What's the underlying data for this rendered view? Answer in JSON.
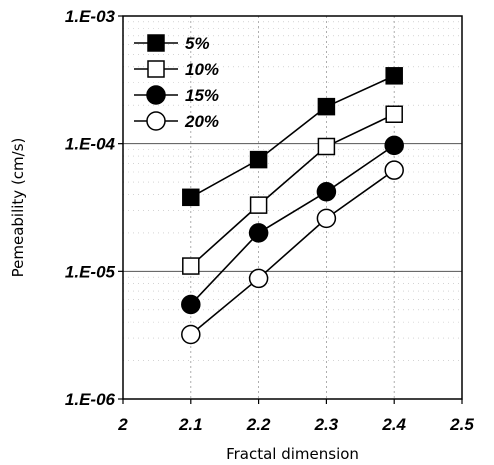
{
  "chart_data": {
    "type": "line",
    "title": "",
    "xlabel": "Fractal dimension",
    "ylabel": "Pemeability (cm/s)",
    "xlim": [
      2,
      2.5
    ],
    "ylim": [
      1e-06,
      0.001
    ],
    "yscale": "log",
    "x_ticks": [
      2,
      2.1,
      2.2,
      2.3,
      2.4,
      2.5
    ],
    "x_tick_labels": [
      "2",
      "2.1",
      "2.2",
      "2.3",
      "2.4",
      "2.5"
    ],
    "y_ticks": [
      1e-06,
      1e-05,
      0.0001,
      0.001
    ],
    "y_tick_labels": [
      "1.E-06",
      "1.E-05",
      "1.E-04",
      "1.E-03"
    ],
    "grid": true,
    "legend_position": "top-left",
    "x": [
      2.1,
      2.2,
      2.3,
      2.4
    ],
    "series": [
      {
        "name": "5%",
        "marker": "filled-square",
        "values": [
          3.8e-05,
          7.5e-05,
          0.000195,
          0.00034
        ]
      },
      {
        "name": "10%",
        "marker": "open-square",
        "values": [
          1.1e-05,
          3.3e-05,
          9.5e-05,
          0.00017
        ]
      },
      {
        "name": "15%",
        "marker": "filled-circle",
        "values": [
          5.5e-06,
          2e-05,
          4.2e-05,
          9.7e-05
        ]
      },
      {
        "name": "20%",
        "marker": "open-circle",
        "values": [
          3.2e-06,
          8.8e-06,
          2.6e-05,
          6.2e-05
        ]
      }
    ]
  }
}
